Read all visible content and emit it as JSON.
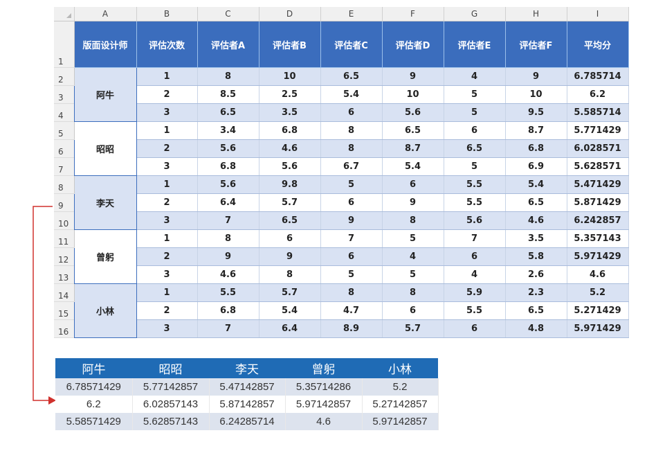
{
  "spreadsheet": {
    "column_letters": [
      "A",
      "B",
      "C",
      "D",
      "E",
      "F",
      "G",
      "H",
      "I"
    ],
    "row_numbers": [
      "1",
      "2",
      "3",
      "4",
      "5",
      "6",
      "7",
      "8",
      "9",
      "10",
      "11",
      "12",
      "13",
      "14",
      "15",
      "16"
    ],
    "headers": [
      "版面设计师",
      "评估次数",
      "评估者A",
      "评估者B",
      "评估者C",
      "评估者D",
      "评估者E",
      "评估者F",
      "平均分"
    ],
    "designers": [
      {
        "name": "阿牛",
        "rows": [
          {
            "n": "1",
            "scores": [
              "8",
              "10",
              "6.5",
              "9",
              "4",
              "9"
            ],
            "avg": "6.785714"
          },
          {
            "n": "2",
            "scores": [
              "8.5",
              "2.5",
              "5.4",
              "10",
              "5",
              "10"
            ],
            "avg": "6.2"
          },
          {
            "n": "3",
            "scores": [
              "6.5",
              "3.5",
              "6",
              "5.6",
              "5",
              "9.5"
            ],
            "avg": "5.585714"
          }
        ]
      },
      {
        "name": "昭昭",
        "rows": [
          {
            "n": "1",
            "scores": [
              "3.4",
              "6.8",
              "8",
              "6.5",
              "6",
              "8.7"
            ],
            "avg": "5.771429"
          },
          {
            "n": "2",
            "scores": [
              "5.6",
              "4.6",
              "8",
              "8.7",
              "6.5",
              "6.8"
            ],
            "avg": "6.028571"
          },
          {
            "n": "3",
            "scores": [
              "6.8",
              "5.6",
              "6.7",
              "5.4",
              "5",
              "6.9"
            ],
            "avg": "5.628571"
          }
        ]
      },
      {
        "name": "李天",
        "rows": [
          {
            "n": "1",
            "scores": [
              "5.6",
              "9.8",
              "5",
              "6",
              "5.5",
              "5.4"
            ],
            "avg": "5.471429"
          },
          {
            "n": "2",
            "scores": [
              "6.4",
              "5.7",
              "6",
              "9",
              "5.5",
              "6.5"
            ],
            "avg": "5.871429"
          },
          {
            "n": "3",
            "scores": [
              "7",
              "6.5",
              "9",
              "8",
              "5.6",
              "4.6"
            ],
            "avg": "6.242857"
          }
        ]
      },
      {
        "name": "曾躬",
        "rows": [
          {
            "n": "1",
            "scores": [
              "8",
              "6",
              "7",
              "5",
              "7",
              "3.5"
            ],
            "avg": "5.357143"
          },
          {
            "n": "2",
            "scores": [
              "9",
              "9",
              "6",
              "4",
              "6",
              "5.8"
            ],
            "avg": "5.971429"
          },
          {
            "n": "3",
            "scores": [
              "4.6",
              "8",
              "5",
              "5",
              "4",
              "2.6"
            ],
            "avg": "4.6"
          }
        ]
      },
      {
        "name": "小林",
        "rows": [
          {
            "n": "1",
            "scores": [
              "5.5",
              "5.7",
              "8",
              "8",
              "5.9",
              "2.3"
            ],
            "avg": "5.2"
          },
          {
            "n": "2",
            "scores": [
              "6.8",
              "5.4",
              "4.7",
              "6",
              "5.5",
              "6.5"
            ],
            "avg": "5.271429"
          },
          {
            "n": "3",
            "scores": [
              "7",
              "6.4",
              "8.9",
              "5.7",
              "6",
              "4.8"
            ],
            "avg": "5.971429"
          }
        ]
      }
    ]
  },
  "summary_table": {
    "headers": [
      "阿牛",
      "昭昭",
      "李天",
      "曾躬",
      "小林"
    ],
    "rows": [
      [
        "6.78571429",
        "5.77142857",
        "5.47142857",
        "5.35714286",
        "5.2"
      ],
      [
        "6.2",
        "6.02857143",
        "5.87142857",
        "5.97142857",
        "5.27142857"
      ],
      [
        "5.58571429",
        "5.62857143",
        "6.24285714",
        "4.6",
        "5.97142857"
      ]
    ]
  },
  "colors": {
    "header_blue": "#3b6dbd",
    "row_shade": "#d9e2f3",
    "summary_header": "#1f6bb5",
    "summary_shade": "#dde3ee",
    "connector_red": "#d0312d"
  }
}
